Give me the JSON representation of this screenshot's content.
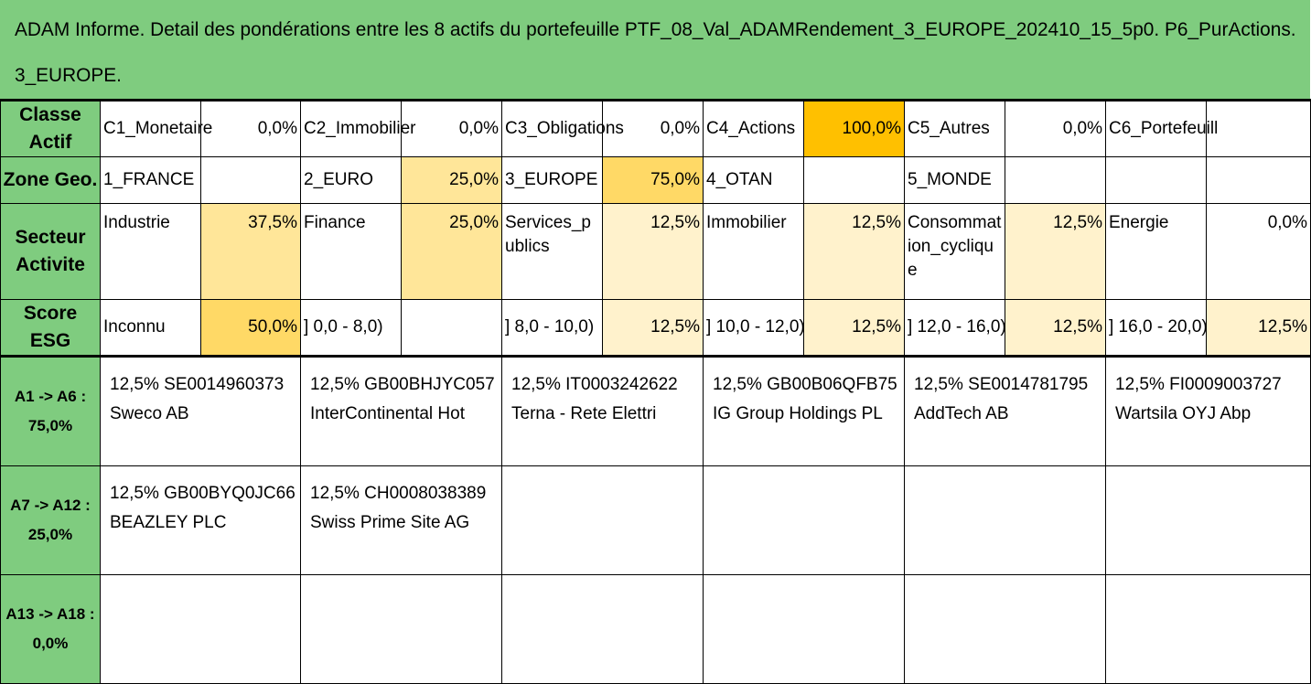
{
  "title": {
    "line1": "ADAM Informe. Detail des pondérations entre les 8 actifs du portefeuille PTF_08_Val_ADAMRendement_3_EUROPE_202410_15_5p0. P6_PurActions.",
    "line2": "3_EUROPE."
  },
  "classe": {
    "label": "Classe Actif",
    "items": [
      {
        "name": "C1_Monetaire",
        "value": "0,0%"
      },
      {
        "name": "C2_Immobilier",
        "value": "0,0%"
      },
      {
        "name": "C3_Obligations",
        "value": "0,0%"
      },
      {
        "name": "C4_Actions",
        "value": "100,0%"
      },
      {
        "name": "C5_Autres",
        "value": "0,0%"
      },
      {
        "name": "C6_Portefeuill",
        "value": ""
      }
    ]
  },
  "zone": {
    "label": "Zone Geo.",
    "items": [
      {
        "name": "1_FRANCE",
        "value": ""
      },
      {
        "name": "2_EURO",
        "value": "25,0%"
      },
      {
        "name": "3_EUROPE",
        "value": "75,0%"
      },
      {
        "name": "4_OTAN",
        "value": ""
      },
      {
        "name": "5_MONDE",
        "value": ""
      },
      {
        "name": "",
        "value": ""
      }
    ]
  },
  "secteur": {
    "label": "Secteur Activite",
    "items": [
      {
        "name": "Industrie",
        "value": "37,5%"
      },
      {
        "name": "Finance",
        "value": "25,0%"
      },
      {
        "name": "Services_publics",
        "value": "12,5%"
      },
      {
        "name": "Immobilier",
        "value": "12,5%"
      },
      {
        "name": "Consommation_cyclique",
        "value": "12,5%"
      },
      {
        "name": "Energie",
        "value": "0,0%"
      }
    ]
  },
  "esg": {
    "label": "Score ESG",
    "items": [
      {
        "name": "Inconnu",
        "value": "50,0%"
      },
      {
        "name": "] 0,0 - 8,0)",
        "value": ""
      },
      {
        "name": "] 8,0 - 10,0)",
        "value": "12,5%"
      },
      {
        "name": "] 10,0 - 12,0)",
        "value": "12,5%"
      },
      {
        "name": "] 12,0 - 16,0)",
        "value": "12,5%"
      },
      {
        "name": "] 16,0 - 20,0)",
        "value": "12,5%"
      }
    ]
  },
  "assets": [
    {
      "label": "A1 -> A6 :",
      "total": "75,0%",
      "items": [
        {
          "line1": "12,5% SE0014960373",
          "line2": "Sweco AB"
        },
        {
          "line1": "12,5% GB00BHJYC057",
          "line2": "InterContinental Hot"
        },
        {
          "line1": "12,5% IT0003242622",
          "line2": "Terna - Rete Elettri"
        },
        {
          "line1": "12,5% GB00B06QFB75",
          "line2": "IG Group Holdings PL"
        },
        {
          "line1": "12,5% SE0014781795",
          "line2": "AddTech AB"
        },
        {
          "line1": "12,5% FI0009003727",
          "line2": "Wartsila OYJ Abp"
        }
      ]
    },
    {
      "label": "A7 -> A12 :",
      "total": "25,0%",
      "items": [
        {
          "line1": "12,5% GB00BYQ0JC66",
          "line2": "BEAZLEY PLC"
        },
        {
          "line1": "12,5% CH0008038389",
          "line2": "Swiss Prime Site AG"
        },
        {
          "line1": "",
          "line2": ""
        },
        {
          "line1": "",
          "line2": ""
        },
        {
          "line1": "",
          "line2": ""
        },
        {
          "line1": "",
          "line2": ""
        }
      ]
    },
    {
      "label": "A13 -> A18 :",
      "total": "0,0%",
      "items": [
        {
          "line1": "",
          "line2": ""
        },
        {
          "line1": "",
          "line2": ""
        },
        {
          "line1": "",
          "line2": ""
        },
        {
          "line1": "",
          "line2": ""
        },
        {
          "line1": "",
          "line2": ""
        },
        {
          "line1": "",
          "line2": ""
        }
      ]
    }
  ],
  "colors": {
    "header_green": "#7fcc7f",
    "orange": "#ffc000",
    "gold": "#ffd966",
    "light": "#fff2cc"
  }
}
